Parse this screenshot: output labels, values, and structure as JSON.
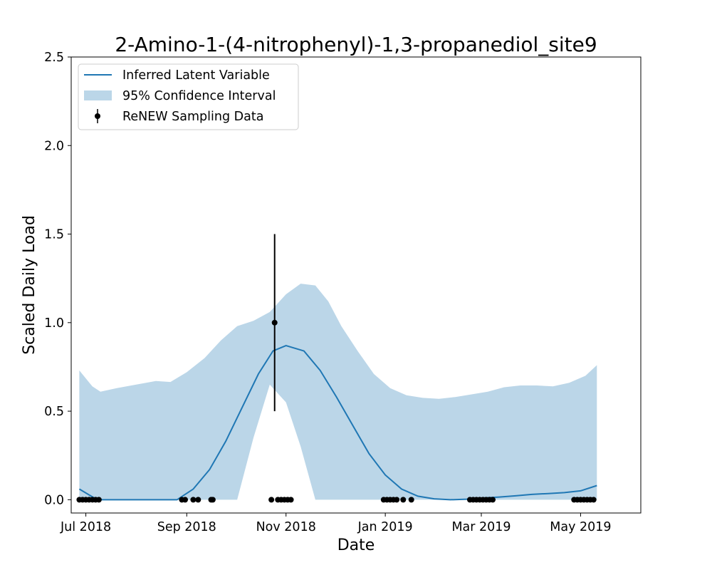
{
  "chart_data": {
    "type": "line",
    "title": "2-Amino-1-(4-nitrophenyl)-1,3-propanediol_site9",
    "xlabel": "Date",
    "ylabel": "Scaled Daily Load",
    "xlim": [
      "2018-06-22",
      "2019-06-07"
    ],
    "ylim": [
      -0.075,
      2.5
    ],
    "x_ticks": [
      {
        "date": "2018-07-01",
        "label": "Jul 2018"
      },
      {
        "date": "2018-09-01",
        "label": "Sep 2018"
      },
      {
        "date": "2018-11-01",
        "label": "Nov 2018"
      },
      {
        "date": "2019-01-01",
        "label": "Jan 2019"
      },
      {
        "date": "2019-03-01",
        "label": "Mar 2019"
      },
      {
        "date": "2019-05-01",
        "label": "May 2019"
      }
    ],
    "y_ticks": [
      {
        "value": 0.0,
        "label": "0.0"
      },
      {
        "value": 0.5,
        "label": "0.5"
      },
      {
        "value": 1.0,
        "label": "1.0"
      },
      {
        "value": 1.5,
        "label": "1.5"
      },
      {
        "value": 2.0,
        "label": "2.0"
      },
      {
        "value": 2.5,
        "label": "2.5"
      }
    ],
    "grid": false,
    "legend": {
      "position": "upper-left",
      "entries": [
        "Inferred Latent Variable",
        "95% Confidence Interval",
        "ReNEW Sampling Data"
      ]
    },
    "colors": {
      "line": "#1f77b4",
      "band": "#bbd6e8",
      "points": "#000000"
    },
    "series": [
      {
        "name": "Inferred Latent Variable",
        "kind": "line",
        "x": [
          "2018-06-27",
          "2018-07-08",
          "2018-07-18",
          "2018-07-28",
          "2018-08-06",
          "2018-08-16",
          "2018-08-26",
          "2018-09-05",
          "2018-09-15",
          "2018-09-25",
          "2018-10-05",
          "2018-10-15",
          "2018-10-24",
          "2018-11-01",
          "2018-11-12",
          "2018-11-22",
          "2018-12-02",
          "2018-12-12",
          "2018-12-22",
          "2019-01-01",
          "2019-01-11",
          "2019-01-21",
          "2019-01-31",
          "2019-02-10",
          "2019-02-20",
          "2019-03-02",
          "2019-03-12",
          "2019-03-22",
          "2019-04-01",
          "2019-04-11",
          "2019-04-21",
          "2019-05-01",
          "2019-05-11"
        ],
        "y": [
          0.06,
          0.0,
          0.0,
          0.0,
          0.0,
          0.0,
          0.0,
          0.06,
          0.17,
          0.33,
          0.52,
          0.71,
          0.84,
          0.87,
          0.84,
          0.73,
          0.58,
          0.42,
          0.26,
          0.14,
          0.06,
          0.02,
          0.005,
          0.0,
          0.003,
          0.01,
          0.015,
          0.022,
          0.03,
          0.035,
          0.04,
          0.05,
          0.08
        ]
      },
      {
        "name": "95% Confidence Interval",
        "kind": "band",
        "x": [
          "2018-06-27",
          "2018-07-05",
          "2018-07-10",
          "2018-07-20",
          "2018-08-01",
          "2018-08-13",
          "2018-08-22",
          "2018-09-01",
          "2018-09-12",
          "2018-09-22",
          "2018-10-02",
          "2018-10-12",
          "2018-10-22",
          "2018-11-01",
          "2018-11-10",
          "2018-11-19",
          "2018-11-27",
          "2018-12-05",
          "2018-12-15",
          "2018-12-25",
          "2019-01-04",
          "2019-01-14",
          "2019-01-24",
          "2019-02-03",
          "2019-02-13",
          "2019-02-23",
          "2019-03-05",
          "2019-03-15",
          "2019-03-25",
          "2019-04-04",
          "2019-04-14",
          "2019-04-24",
          "2019-05-04",
          "2019-05-11"
        ],
        "upper": [
          0.73,
          0.64,
          0.61,
          0.63,
          0.65,
          0.67,
          0.665,
          0.72,
          0.8,
          0.9,
          0.98,
          1.01,
          1.06,
          1.16,
          1.22,
          1.21,
          1.12,
          0.98,
          0.84,
          0.71,
          0.63,
          0.59,
          0.575,
          0.57,
          0.58,
          0.595,
          0.61,
          0.635,
          0.645,
          0.645,
          0.64,
          0.66,
          0.7,
          0.76
        ],
        "lower": [
          0.0,
          0.0,
          0.0,
          0.0,
          0.0,
          0.0,
          0.0,
          0.0,
          0.0,
          0.0,
          0.0,
          0.35,
          0.65,
          0.55,
          0.3,
          0.0,
          0.0,
          0.0,
          0.0,
          0.0,
          0.0,
          0.0,
          0.0,
          0.0,
          0.0,
          0.0,
          0.0,
          0.0,
          0.0,
          0.0,
          0.0,
          0.0,
          0.0,
          0.0
        ]
      },
      {
        "name": "ReNEW Sampling Data",
        "kind": "errorbar",
        "points": [
          {
            "x": "2018-06-27",
            "y": 0.0
          },
          {
            "x": "2018-06-29",
            "y": 0.0
          },
          {
            "x": "2018-07-01",
            "y": 0.0
          },
          {
            "x": "2018-07-03",
            "y": 0.0
          },
          {
            "x": "2018-07-05",
            "y": 0.0
          },
          {
            "x": "2018-07-07",
            "y": 0.0
          },
          {
            "x": "2018-07-09",
            "y": 0.0
          },
          {
            "x": "2018-08-29",
            "y": 0.0
          },
          {
            "x": "2018-08-31",
            "y": 0.0
          },
          {
            "x": "2018-09-05",
            "y": 0.0
          },
          {
            "x": "2018-09-08",
            "y": 0.0
          },
          {
            "x": "2018-09-16",
            "y": 0.0
          },
          {
            "x": "2018-09-17",
            "y": 0.0
          },
          {
            "x": "2018-10-23",
            "y": 0.0
          },
          {
            "x": "2018-10-25",
            "y": 1.0,
            "err_low": 0.5,
            "err_high": 1.5
          },
          {
            "x": "2018-10-27",
            "y": 0.0
          },
          {
            "x": "2018-10-29",
            "y": 0.0
          },
          {
            "x": "2018-10-31",
            "y": 0.0
          },
          {
            "x": "2018-11-02",
            "y": 0.0
          },
          {
            "x": "2018-11-04",
            "y": 0.0
          },
          {
            "x": "2018-12-31",
            "y": 0.0
          },
          {
            "x": "2019-01-02",
            "y": 0.0
          },
          {
            "x": "2019-01-04",
            "y": 0.0
          },
          {
            "x": "2019-01-06",
            "y": 0.0
          },
          {
            "x": "2019-01-08",
            "y": 0.0
          },
          {
            "x": "2019-01-12",
            "y": 0.0
          },
          {
            "x": "2019-01-17",
            "y": 0.0
          },
          {
            "x": "2019-02-22",
            "y": 0.0
          },
          {
            "x": "2019-02-24",
            "y": 0.0
          },
          {
            "x": "2019-02-26",
            "y": 0.0
          },
          {
            "x": "2019-02-28",
            "y": 0.0
          },
          {
            "x": "2019-03-02",
            "y": 0.0
          },
          {
            "x": "2019-03-04",
            "y": 0.0
          },
          {
            "x": "2019-03-06",
            "y": 0.0
          },
          {
            "x": "2019-03-08",
            "y": 0.0
          },
          {
            "x": "2019-04-27",
            "y": 0.0
          },
          {
            "x": "2019-04-29",
            "y": 0.0
          },
          {
            "x": "2019-05-01",
            "y": 0.0
          },
          {
            "x": "2019-05-03",
            "y": 0.0
          },
          {
            "x": "2019-05-05",
            "y": 0.0
          },
          {
            "x": "2019-05-07",
            "y": 0.0
          },
          {
            "x": "2019-05-09",
            "y": 0.0
          }
        ]
      }
    ]
  }
}
